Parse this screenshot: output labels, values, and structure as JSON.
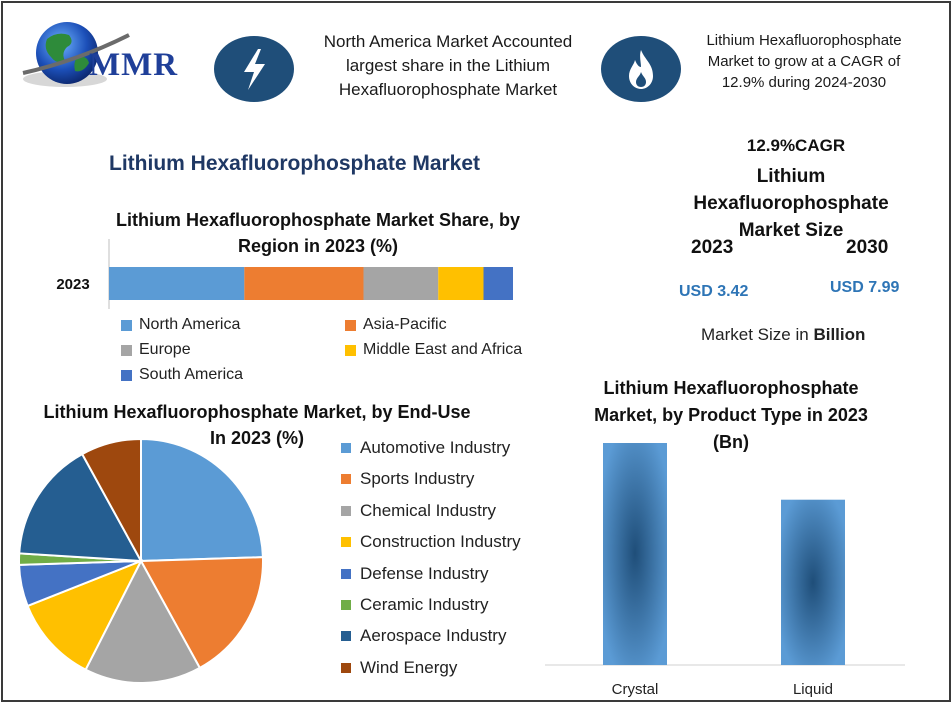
{
  "logo": {
    "text": "MMR"
  },
  "header": {
    "left_text": "North America Market Accounted largest share in the Lithium Hexafluorophosphate Market",
    "right_text": "Lithium Hexafluorophosphate Market to grow at a CAGR of 12.9% during 2024-2030",
    "left_icon": "lightning-icon",
    "right_icon": "flame-icon"
  },
  "main_title": "Lithium Hexafluorophosphate Market",
  "market_size": {
    "cagr": "12.9%CAGR",
    "title": "Lithium Hexafluorophosphate Market Size",
    "year_start": "2023",
    "year_end": "2030",
    "value_start": "USD 3.42",
    "value_end": "USD 7.99",
    "unit_prefix": "Market Size in ",
    "unit_bold": "Billion"
  },
  "colors": {
    "navy": "#1f4e79",
    "title_blue": "#1f3864",
    "value_blue": "#2e75b6"
  },
  "chart_data": [
    {
      "type": "bar",
      "orientation": "horizontal-stacked",
      "title": "Lithium Hexafluorophosphate Market Share, by Region in 2023 (%)",
      "categories": [
        "2023"
      ],
      "series": [
        {
          "name": "North America",
          "values": [
            33.5
          ],
          "color": "#5b9bd5"
        },
        {
          "name": "Asia-Pacific",
          "values": [
            29.5
          ],
          "color": "#ed7d31"
        },
        {
          "name": "Europe",
          "values": [
            18.5
          ],
          "color": "#a5a5a5"
        },
        {
          "name": "Middle East and Africa",
          "values": [
            11.2
          ],
          "color": "#ffc000"
        },
        {
          "name": "South America",
          "values": [
            7.3
          ],
          "color": "#4472c4"
        }
      ],
      "xlim": [
        0,
        100
      ],
      "legend": "bottom"
    },
    {
      "type": "pie",
      "title": "Lithium Hexafluorophosphate Market, by End-Use In 2023 (%)",
      "labels": [
        "Automotive Industry",
        "Sports Industry",
        "Chemical Industry",
        "Construction Industry",
        "Defense Industry",
        "Ceramic Industry",
        "Aerospace Industry",
        "Wind Energy"
      ],
      "values": [
        24.5,
        17.5,
        15.5,
        11.5,
        5.5,
        1.5,
        16.0,
        8.0
      ],
      "colors": [
        "#5b9bd5",
        "#ed7d31",
        "#a5a5a5",
        "#ffc000",
        "#4472c4",
        "#70ad47",
        "#255e91",
        "#9e480e"
      ],
      "legend": "right"
    },
    {
      "type": "bar",
      "title": "Lithium Hexafluorophosphate Market, by Product Type in 2023 (Bn)",
      "categories": [
        "Crystal",
        "Liquid"
      ],
      "values": [
        1.97,
        1.45
      ],
      "ylim": [
        0,
        2.0
      ],
      "color": "#5b9bd5",
      "grid": false
    }
  ]
}
